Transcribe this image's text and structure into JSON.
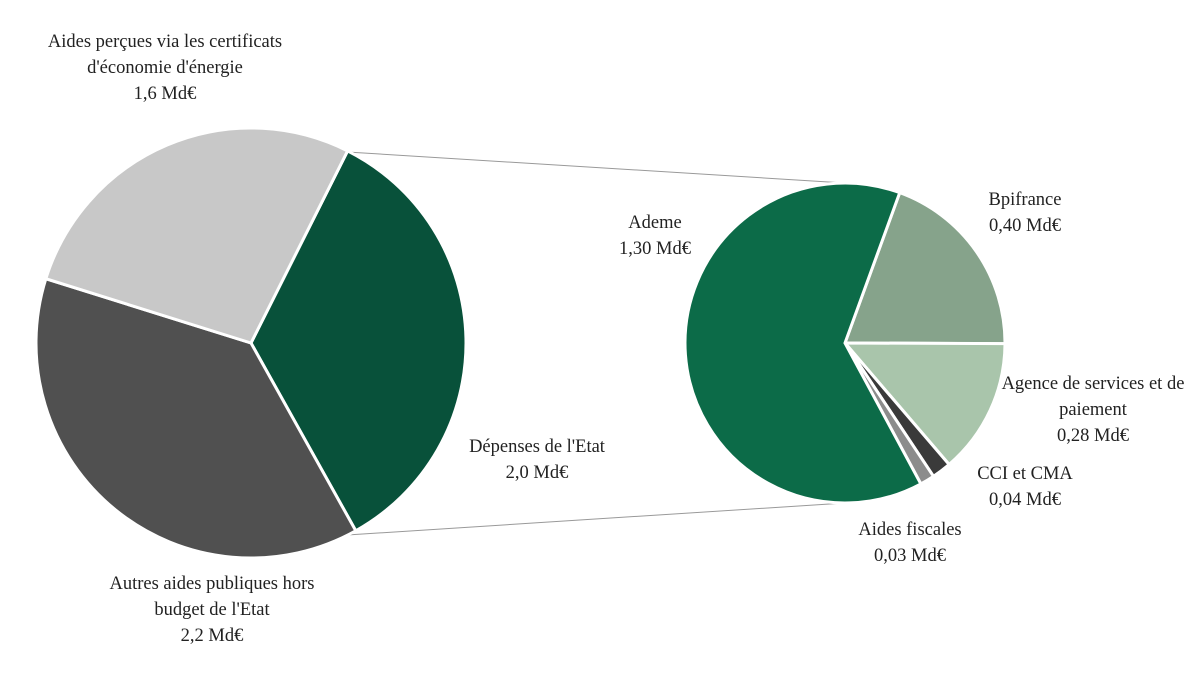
{
  "chart_data": [
    {
      "type": "pie",
      "categories": [
        "Dépenses de l'Etat",
        "Autres aides publiques hors budget de l'Etat",
        "Aides perçues via les certificats d'économie d'énergie"
      ],
      "values": [
        2.0,
        2.2,
        1.6
      ],
      "value_labels": [
        "2,0 Md€",
        "2,2 Md€",
        "1,6 Md€"
      ],
      "colors": [
        "#08513a",
        "#505050",
        "#c8c8c8"
      ]
    },
    {
      "type": "pie",
      "categories": [
        "Bpifrance",
        "Agence de services et de paiement",
        "CCI et CMA",
        "Aides fiscales",
        "Ademe"
      ],
      "values": [
        0.4,
        0.28,
        0.04,
        0.03,
        1.3
      ],
      "value_labels": [
        "0,40 Md€",
        "0,28 Md€",
        "0,04 Md€",
        "0,03 Md€",
        "1,30 Md€"
      ],
      "colors": [
        "#86a38b",
        "#a9c5ab",
        "#3a3a3a",
        "#8c8c8c",
        "#0c6b48"
      ]
    }
  ]
}
